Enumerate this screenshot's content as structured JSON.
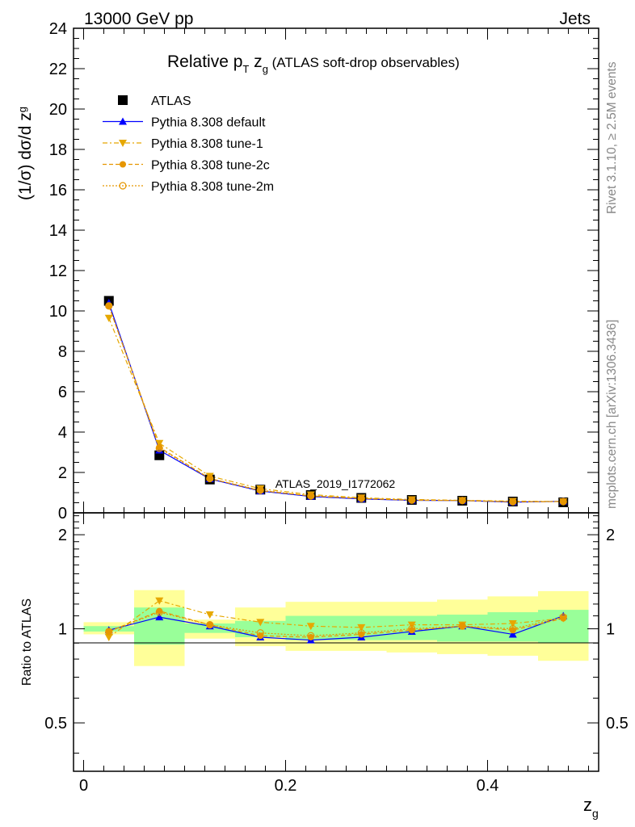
{
  "header": {
    "left": "13000 GeV pp",
    "right": "Jets"
  },
  "title": {
    "main": "Relative p",
    "main_sub": "T",
    "main_tail": " z",
    "main_tail_sub": "g",
    "paren": " (ATLAS soft-drop observables)"
  },
  "ylabel_top": {
    "main": "(1/σ) dσ/d z",
    "sub": "g"
  },
  "ylabel_bottom": "Ratio to ATLAS",
  "xlabel": {
    "main": "z",
    "sub": "g"
  },
  "side_labels": {
    "rivet": "Rivet 3.1.10, ≥ 2.5M events",
    "mcplots": "mcplots.cern.ch [arXiv:1306.3436]"
  },
  "watermark": "ATLAS_2019_I1772062",
  "legend": [
    {
      "label": "ATLAS",
      "color": "#000000",
      "marker": "square"
    },
    {
      "label": "Pythia 8.308 default",
      "color": "#0000ff",
      "marker": "triangle-up"
    },
    {
      "label": "Pythia 8.308 tune-1",
      "color": "#e6a800",
      "marker": "triangle-down"
    },
    {
      "label": "Pythia 8.308 tune-2c",
      "color": "#e69600",
      "marker": "circle"
    },
    {
      "label": "Pythia 8.308 tune-2m",
      "color": "#e69600",
      "marker": "circle-open"
    }
  ],
  "chart_data": {
    "type": "line",
    "x": [
      0.025,
      0.075,
      0.125,
      0.175,
      0.225,
      0.275,
      0.325,
      0.375,
      0.425,
      0.475
    ],
    "bin_edges": [
      0.0,
      0.05,
      0.1,
      0.15,
      0.2,
      0.25,
      0.3,
      0.35,
      0.4,
      0.45,
      0.5
    ],
    "xlim": [
      -0.01,
      0.51
    ],
    "ylim": [
      0,
      24
    ],
    "ratio_ylim": [
      0.35,
      2.35
    ],
    "x_ticks": [
      "0",
      "0.2",
      "0.4"
    ],
    "y_ticks": [
      "0",
      "2",
      "4",
      "6",
      "8",
      "10",
      "12",
      "14",
      "16",
      "18",
      "20",
      "22",
      "24"
    ],
    "ratio_ticks": [
      "0.5",
      "1",
      "2"
    ],
    "data": {
      "name": "ATLAS",
      "values": [
        10.5,
        2.85,
        1.65,
        1.15,
        0.88,
        0.74,
        0.64,
        0.6,
        0.56,
        0.52
      ]
    },
    "series": [
      {
        "name": "Pythia 8.308 default",
        "values": [
          10.4,
          3.1,
          1.68,
          1.08,
          0.81,
          0.69,
          0.62,
          0.61,
          0.53,
          0.57
        ],
        "ratio": [
          0.99,
          1.09,
          1.02,
          0.94,
          0.92,
          0.94,
          0.98,
          1.02,
          0.96,
          1.1
        ]
      },
      {
        "name": "Pythia 8.308 tune-1",
        "values": [
          9.65,
          3.45,
          1.82,
          1.2,
          0.9,
          0.75,
          0.66,
          0.62,
          0.58,
          0.56
        ],
        "ratio": [
          0.94,
          1.23,
          1.11,
          1.05,
          1.02,
          1.01,
          1.03,
          1.03,
          1.04,
          1.08
        ]
      },
      {
        "name": "Pythia 8.308 tune-2c",
        "values": [
          10.25,
          3.25,
          1.7,
          1.1,
          0.84,
          0.71,
          0.63,
          0.61,
          0.55,
          0.56
        ],
        "ratio": [
          0.98,
          1.14,
          1.03,
          0.95,
          0.94,
          0.96,
          0.99,
          1.02,
          0.99,
          1.08
        ]
      },
      {
        "name": "Pythia 8.308 tune-2m",
        "values": [
          10.25,
          3.2,
          1.7,
          1.12,
          0.84,
          0.72,
          0.63,
          0.61,
          0.55,
          0.56
        ],
        "ratio": [
          0.98,
          1.13,
          1.03,
          0.97,
          0.95,
          0.97,
          1.0,
          1.02,
          1.0,
          1.09
        ]
      }
    ],
    "bands": {
      "inner": [
        [
          0.98,
          1.02
        ],
        [
          0.89,
          1.17
        ],
        [
          0.97,
          1.04
        ],
        [
          0.94,
          1.06
        ],
        [
          0.92,
          1.1
        ],
        [
          0.92,
          1.1
        ],
        [
          0.92,
          1.1
        ],
        [
          0.91,
          1.11
        ],
        [
          0.91,
          1.13
        ],
        [
          0.9,
          1.15
        ]
      ],
      "outer": [
        [
          0.96,
          1.05
        ],
        [
          0.76,
          1.33
        ],
        [
          0.93,
          1.07
        ],
        [
          0.88,
          1.17
        ],
        [
          0.85,
          1.22
        ],
        [
          0.85,
          1.22
        ],
        [
          0.84,
          1.22
        ],
        [
          0.83,
          1.24
        ],
        [
          0.82,
          1.27
        ],
        [
          0.79,
          1.32
        ]
      ],
      "inner_color": "#99ff99",
      "outer_color": "#ffff99"
    },
    "grid": false,
    "legend_position": "top-left"
  }
}
